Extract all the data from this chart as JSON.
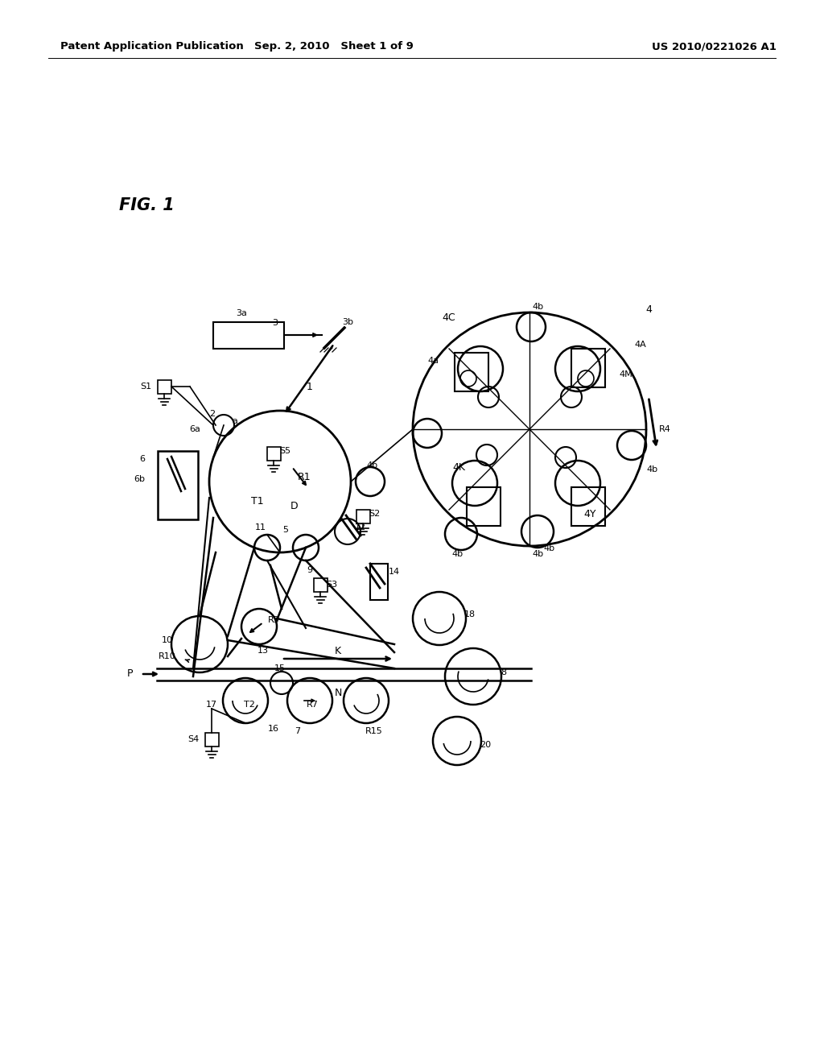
{
  "bg_color": "#ffffff",
  "header_left": "Patent Application Publication",
  "header_mid": "Sep. 2, 2010   Sheet 1 of 9",
  "header_right": "US 2010/0221026 A1",
  "fig_label": "FIG. 1",
  "header_fontsize": 9.5,
  "fig_fontsize": 15,
  "label_fontsize": 8.5
}
